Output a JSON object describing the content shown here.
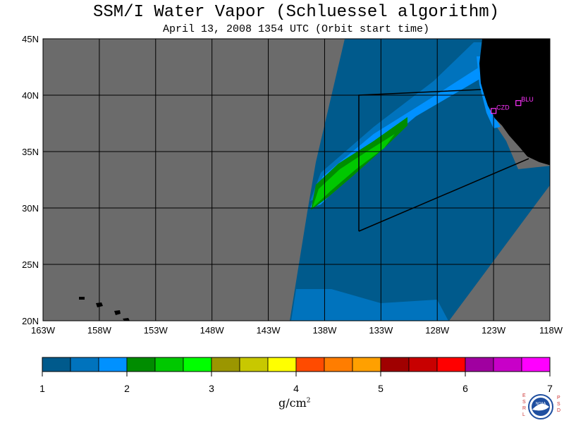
{
  "title": "SSM/I Water Vapor (Schluessel algorithm)",
  "subtitle": "April 13, 2008  1354 UTC  (Orbit start time)",
  "map": {
    "lat_labels": [
      "45N",
      "40N",
      "35N",
      "30N",
      "25N",
      "20N"
    ],
    "lon_labels": [
      "163W",
      "158W",
      "153W",
      "148W",
      "143W",
      "138W",
      "133W",
      "128W",
      "123W",
      "118W"
    ],
    "stations": [
      {
        "code": "CZD",
        "lon": -123.0,
        "lat": 38.6
      },
      {
        "code": "BLU",
        "lon": -120.8,
        "lat": 39.3
      }
    ],
    "colors": {
      "no_data": "#6b6b6b",
      "land": "#000000",
      "grid": "#000000",
      "station": "#ff33ff"
    }
  },
  "colorbar": {
    "ticks": [
      "1",
      "2",
      "3",
      "4",
      "5",
      "6",
      "7"
    ],
    "colors": [
      "#005a8c",
      "#0073bd",
      "#0091ff",
      "#008c00",
      "#00c800",
      "#00ff00",
      "#9b9600",
      "#c8c800",
      "#ffff00",
      "#ff4b00",
      "#ff7d00",
      "#ffa000",
      "#a00000",
      "#c80000",
      "#ff0000",
      "#a000a0",
      "#c800c8",
      "#ff00ff"
    ],
    "unit_base": "g/cm",
    "unit_sup": "2"
  },
  "logo": {
    "left_letters": "E S R L",
    "right_letters": "P S D",
    "name": "NOAA"
  }
}
